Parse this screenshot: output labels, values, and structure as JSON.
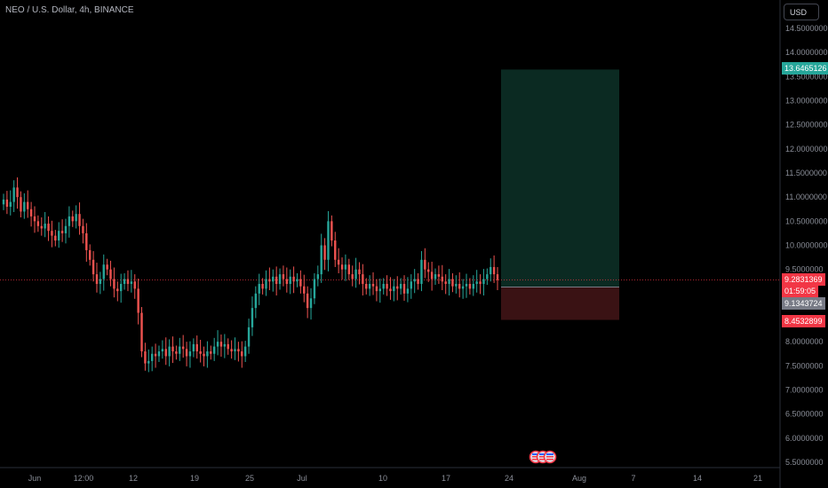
{
  "header": {
    "title": "NEO / U.S. Dollar, 4h, BINANCE",
    "currency_button": "USD"
  },
  "price_axis": {
    "ticks": [
      "14.5000000",
      "14.0000000",
      "13.5000000",
      "13.0000000",
      "12.5000000",
      "12.0000000",
      "11.5000000",
      "11.0000000",
      "10.5000000",
      "10.0000000",
      "9.5000000",
      "8.0000000",
      "7.5000000",
      "7.0000000",
      "6.5000000",
      "6.0000000",
      "5.5000000"
    ],
    "tick_values": [
      14.5,
      14.0,
      13.5,
      13.0,
      12.5,
      12.0,
      11.5,
      11.0,
      10.5,
      10.0,
      9.5,
      8.0,
      7.5,
      7.0,
      6.5,
      6.0,
      5.5
    ]
  },
  "time_axis": {
    "labels": [
      "Jun",
      "12:00",
      "12",
      "19",
      "25",
      "Jul",
      "10",
      "17",
      "24",
      "Aug",
      "7",
      "14",
      "21"
    ]
  },
  "badges": {
    "take_profit": "13.6465126",
    "last_price": "9.2831369",
    "countdown": "01:59:05",
    "entry": "9.1343724",
    "stop_loss": "8.4532899"
  },
  "colors": {
    "up": "#26a69a",
    "down": "#ef5350",
    "profit_zone": "#0b2a22",
    "loss_zone": "#3a1214",
    "take_profit_badge": "#26a69a",
    "stop_loss_badge": "#f23645",
    "last_price_badge": "#f23645",
    "entry_badge": "#787b86"
  },
  "chart_data": {
    "type": "candlestick",
    "title": "NEO / U.S. Dollar, 4h, BINANCE",
    "ylim": [
      5.5,
      14.6
    ],
    "position": {
      "side": "long",
      "entry": 9.1343724,
      "take_profit": 13.6465126,
      "stop_loss": 8.4532899
    },
    "closes": [
      10.95,
      10.8,
      10.9,
      11.2,
      11.0,
      10.7,
      10.9,
      10.75,
      10.6,
      10.5,
      10.4,
      10.35,
      10.45,
      10.3,
      10.2,
      10.1,
      10.3,
      10.25,
      10.4,
      10.6,
      10.5,
      10.65,
      10.4,
      10.25,
      9.9,
      9.7,
      9.4,
      9.2,
      9.3,
      9.6,
      9.5,
      9.3,
      9.1,
      9.05,
      9.2,
      9.3,
      9.2,
      9.25,
      9.1,
      8.6,
      7.8,
      7.55,
      7.6,
      7.75,
      7.7,
      7.8,
      7.85,
      7.7,
      7.9,
      7.8,
      7.75,
      7.9,
      7.85,
      7.7,
      7.8,
      7.95,
      7.8,
      7.75,
      7.7,
      7.8,
      7.75,
      7.9,
      8.0,
      7.9,
      7.95,
      7.85,
      7.8,
      7.85,
      7.8,
      7.7,
      7.9,
      8.3,
      8.7,
      9.0,
      9.2,
      9.1,
      9.3,
      9.25,
      9.35,
      9.2,
      9.4,
      9.3,
      9.2,
      9.35,
      9.25,
      9.3,
      9.15,
      9.0,
      8.7,
      8.9,
      9.3,
      9.4,
      10.0,
      9.7,
      10.5,
      10.1,
      9.7,
      9.6,
      9.5,
      9.6,
      9.4,
      9.3,
      9.5,
      9.4,
      9.2,
      9.1,
      9.2,
      9.15,
      9.05,
      9.1,
      9.2,
      9.1,
      9.05,
      9.15,
      9.1,
      9.2,
      9.0,
      9.1,
      9.25,
      9.3,
      9.2,
      9.7,
      9.5,
      9.45,
      9.3,
      9.4,
      9.35,
      9.25,
      9.2,
      9.3,
      9.15,
      9.2,
      9.1,
      9.15,
      9.2,
      9.1,
      9.2,
      9.25,
      9.2,
      9.3,
      9.4,
      9.55,
      9.4,
      9.28
    ]
  }
}
